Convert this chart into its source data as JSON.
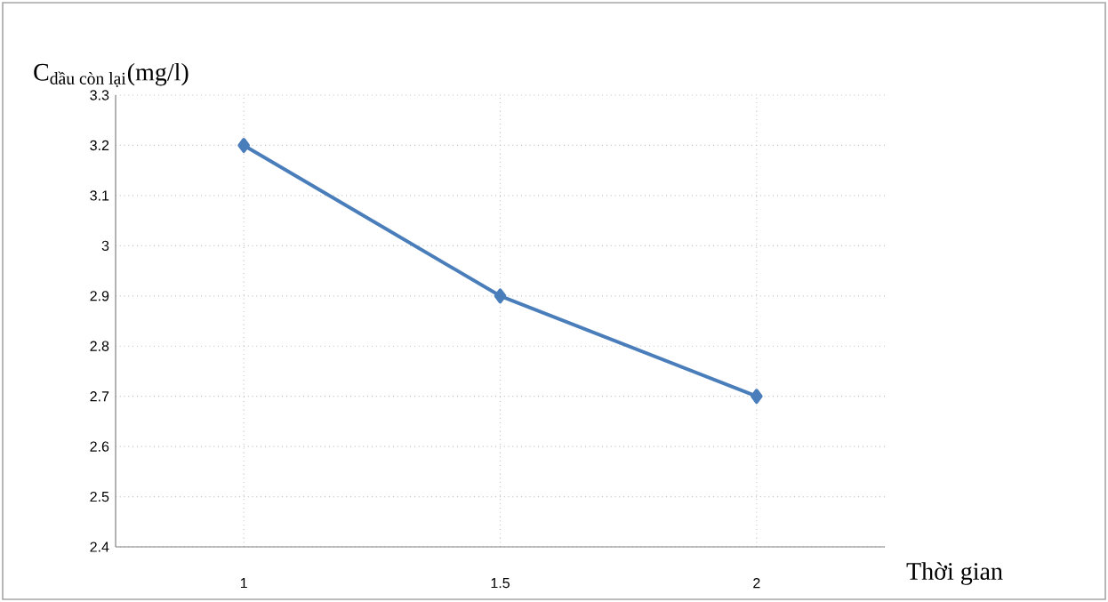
{
  "chart_data": {
    "type": "line",
    "xlabel": "Thời gian",
    "ylabel": "\\text{C}_{\\text{dầu còn lại}}\\text{(mg/l)}",
    "categories": [
      "1",
      "1.5",
      "2"
    ],
    "series": [
      {
        "color": "#4a7ebb",
        "values": [
          3.2,
          2.9,
          2.7
        ]
      }
    ],
    "ylim": [
      2.4,
      3.3
    ],
    "yticks": [
      2.4,
      2.5,
      2.6,
      2.7,
      2.8,
      2.9,
      3,
      3.1,
      3.2,
      3.3
    ],
    "grid": true,
    "marker": "diamond",
    "line_style": "solid"
  }
}
